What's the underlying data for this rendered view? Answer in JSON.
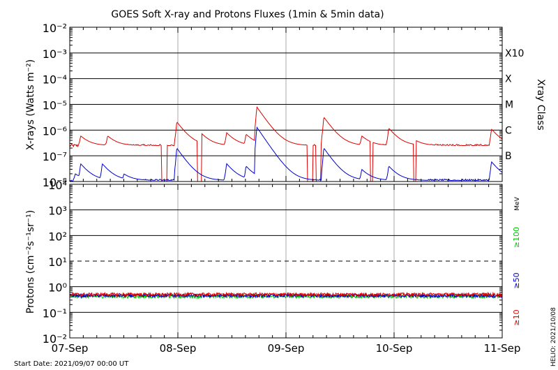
{
  "title": "GOES Soft X-ray and Protons Fluxes   (1min & 5min data)",
  "footer_start": "Start Date: 2021/09/07 00:00 UT",
  "footer_credit": "HELIO: 2021/10/08",
  "colors": {
    "red": "#dd0000",
    "blue": "#0000cc",
    "green": "#00cc00",
    "grid": "#000000",
    "vline": "#aaaaaa"
  },
  "chart_data": [
    {
      "type": "line",
      "panel": "xray",
      "ylabel": "X-rays (Watts m⁻²)",
      "yscale": "log",
      "ylim": [
        1e-08,
        0.01
      ],
      "ytick_labels": [
        "10⁻⁸",
        "10⁻⁷",
        "10⁻⁶",
        "10⁻⁵",
        "10⁻⁴",
        "10⁻³",
        "10⁻²"
      ],
      "right_title": "Xray Class",
      "class_labels": [
        {
          "label": "B",
          "value": 1e-07
        },
        {
          "label": "C",
          "value": 1e-06
        },
        {
          "label": "M",
          "value": 1e-05
        },
        {
          "label": "X",
          "value": 0.0001
        },
        {
          "label": "X10",
          "value": 0.001
        }
      ],
      "x_labels": [
        "07-Sep",
        "08-Sep",
        "09-Sep",
        "10-Sep",
        "11-Sep"
      ],
      "xlim_days": [
        0,
        4
      ],
      "series": [
        {
          "color": "red",
          "baseline": 2.5e-07,
          "peaks": [
            [
              0.1,
              6e-07
            ],
            [
              0.35,
              6e-07
            ],
            [
              0.99,
              2.1e-06
            ],
            [
              1.2,
              9e-07
            ],
            [
              1.45,
              8e-07
            ],
            [
              1.63,
              7e-07
            ],
            [
              1.73,
              8e-06
            ],
            [
              1.9,
              6e-07
            ],
            [
              2.35,
              3.2e-06
            ],
            [
              2.7,
              6e-07
            ],
            [
              2.95,
              1.2e-06
            ],
            [
              3.2,
              4e-07
            ],
            [
              3.9,
              1.1e-06
            ]
          ],
          "dips": [
            [
              0.85,
              0.9
            ],
            [
              1.18,
              1.22
            ],
            [
              2.2,
              2.25
            ],
            [
              2.28,
              2.32
            ],
            [
              2.78,
              2.8
            ],
            [
              3.18,
              3.2
            ]
          ]
        },
        {
          "color": "blue",
          "baseline": 1.1e-08,
          "peaks": [
            [
              0.05,
              2e-08
            ],
            [
              0.1,
              5e-08
            ],
            [
              0.3,
              5e-08
            ],
            [
              0.5,
              2e-08
            ],
            [
              0.99,
              2e-07
            ],
            [
              1.45,
              5e-08
            ],
            [
              1.63,
              4e-08
            ],
            [
              1.73,
              1.3e-06
            ],
            [
              2.35,
              2e-07
            ],
            [
              2.7,
              3e-08
            ],
            [
              2.95,
              4e-08
            ],
            [
              3.9,
              6e-08
            ]
          ]
        }
      ]
    },
    {
      "type": "line",
      "panel": "protons",
      "ylabel": "Protons (cm⁻²s⁻¹sr⁻¹)",
      "yscale": "log",
      "ylim": [
        0.01,
        10000.0
      ],
      "ytick_labels": [
        "10⁻²",
        "10⁻¹",
        "10⁰",
        "10¹",
        "10²",
        "10³",
        "10⁴"
      ],
      "threshold": 10,
      "x_labels": [
        "07-Sep",
        "08-Sep",
        "09-Sep",
        "10-Sep",
        "11-Sep"
      ],
      "xlim_days": [
        0,
        4
      ],
      "unit_label": "MeV",
      "series": [
        {
          "name": "≥10",
          "color": "red",
          "baseline": 0.5
        },
        {
          "name": "≥50",
          "color": "blue",
          "baseline": 0.45
        },
        {
          "name": "≥100",
          "color": "green",
          "baseline": 0.42
        }
      ]
    }
  ]
}
